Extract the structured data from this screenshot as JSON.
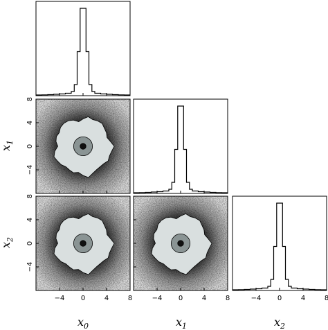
{
  "chart_data": {
    "type": "corner",
    "variables": [
      {
        "symbol": "x",
        "subscript": "0"
      },
      {
        "symbol": "x",
        "subscript": "1"
      },
      {
        "symbol": "x",
        "subscript": "2"
      }
    ],
    "axis_range": [
      -8,
      8
    ],
    "tick_values": [
      -4,
      0,
      4,
      8
    ],
    "tick_labels": [
      "−4",
      "0",
      "4",
      "8"
    ],
    "histograms": {
      "bin_edges": [
        -8,
        -7,
        -6,
        -5,
        -4,
        -3,
        -2,
        -1.5,
        -1,
        -0.5,
        0,
        0.5,
        1,
        1.5,
        2,
        3,
        4,
        5,
        6,
        7,
        8
      ],
      "relative_heights": [
        0,
        0.002,
        0.004,
        0.008,
        0.012,
        0.02,
        0.04,
        0.12,
        0.5,
        1.0,
        1.0,
        0.5,
        0.12,
        0.04,
        0.02,
        0.012,
        0.008,
        0.004,
        0.002,
        0
      ]
    },
    "contours": {
      "center": [
        0,
        0
      ],
      "levels": [
        {
          "name": "outer",
          "radius": 4.8,
          "fill": "#d9dfdf"
        },
        {
          "name": "middle",
          "radius": 1.6,
          "fill": "#8a9494"
        },
        {
          "name": "inner",
          "radius": 0.5,
          "fill": "#111111"
        }
      ]
    },
    "scatter_background": "#000000"
  }
}
